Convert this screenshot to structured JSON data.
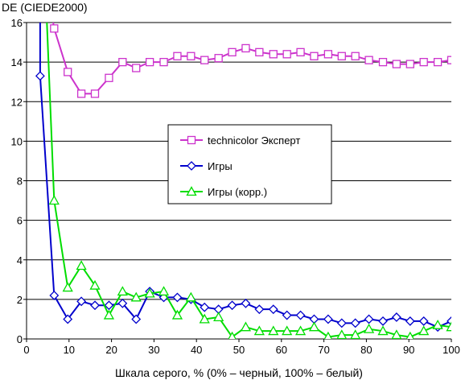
{
  "chart_data": {
    "type": "line",
    "title": "",
    "ylabel": "DE (CIEDE2000)",
    "xlabel": "Шкала серого, % (0% – черный, 100% – белый)",
    "xlim": [
      0,
      100
    ],
    "ylim": [
      0,
      16
    ],
    "xticks": [
      0,
      10,
      20,
      30,
      40,
      50,
      60,
      70,
      80,
      90,
      100
    ],
    "yticks": [
      0,
      2,
      4,
      6,
      8,
      10,
      12,
      14,
      16
    ],
    "grid": "horizontal",
    "legend_position": "center",
    "series": [
      {
        "name": "technicolor Эксперт",
        "color": "#cc33cc",
        "marker": "square",
        "x": [
          5.5,
          6.5,
          9.7,
          12.9,
          16.1,
          19.4,
          22.6,
          25.8,
          29.0,
          32.3,
          35.5,
          38.7,
          41.9,
          45.2,
          48.4,
          51.6,
          54.8,
          58.1,
          61.3,
          64.5,
          67.7,
          71.0,
          74.2,
          77.4,
          80.6,
          83.9,
          87.1,
          90.3,
          93.5,
          96.8,
          100
        ],
        "y": [
          17.0,
          15.7,
          13.5,
          12.4,
          12.4,
          13.2,
          14.0,
          13.7,
          14.0,
          14.0,
          14.3,
          14.3,
          14.1,
          14.2,
          14.5,
          14.7,
          14.5,
          14.4,
          14.4,
          14.5,
          14.3,
          14.4,
          14.3,
          14.3,
          14.1,
          14.0,
          13.9,
          13.9,
          14.0,
          14.0,
          14.1
        ]
      },
      {
        "name": "Игры",
        "color": "#0000cc",
        "marker": "diamond",
        "x": [
          3.2,
          3.2,
          6.5,
          9.7,
          12.9,
          16.1,
          19.4,
          22.6,
          25.8,
          29.0,
          32.3,
          35.5,
          38.7,
          41.9,
          45.2,
          48.4,
          51.6,
          54.8,
          58.1,
          61.3,
          64.5,
          67.7,
          71.0,
          74.2,
          77.4,
          80.6,
          83.9,
          87.1,
          90.3,
          93.5,
          96.8,
          100
        ],
        "y": [
          17.0,
          13.3,
          2.2,
          1.0,
          1.9,
          1.7,
          1.7,
          1.8,
          1.0,
          2.4,
          2.1,
          2.1,
          2.0,
          1.6,
          1.5,
          1.7,
          1.8,
          1.5,
          1.5,
          1.2,
          1.2,
          1.0,
          1.0,
          0.8,
          0.8,
          1.0,
          0.9,
          1.1,
          0.9,
          0.9,
          0.6,
          0.9
        ]
      },
      {
        "name": "Игры (корр.)",
        "color": "#00dd00",
        "marker": "triangle",
        "x": [
          4.6,
          6.5,
          9.7,
          12.9,
          16.1,
          19.4,
          22.6,
          25.8,
          29.0,
          32.3,
          35.5,
          38.7,
          41.9,
          45.2,
          48.4,
          51.6,
          54.8,
          58.1,
          61.3,
          64.5,
          67.7,
          71.0,
          74.2,
          77.4,
          80.6,
          83.9,
          87.1,
          90.3,
          93.5,
          96.8,
          100
        ],
        "y": [
          17.0,
          7.0,
          2.6,
          3.7,
          2.7,
          1.2,
          2.4,
          2.1,
          2.3,
          2.4,
          1.2,
          2.1,
          1.0,
          1.1,
          0.1,
          0.6,
          0.4,
          0.4,
          0.4,
          0.4,
          0.6,
          0.1,
          0.2,
          0.2,
          0.5,
          0.4,
          0.2,
          0.1,
          0.4,
          0.7,
          0.6
        ]
      }
    ]
  }
}
